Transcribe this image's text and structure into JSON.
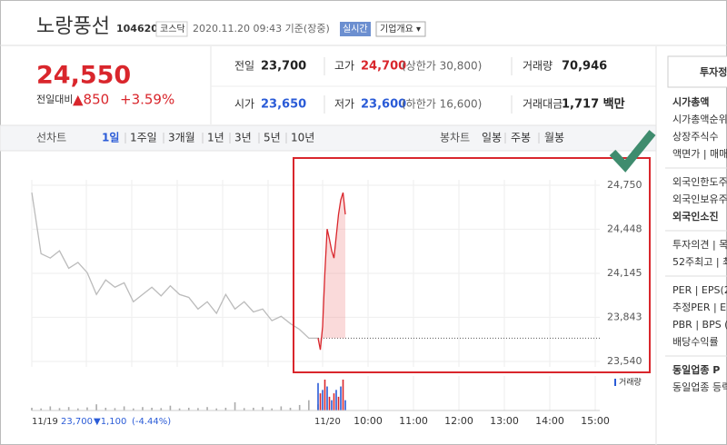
{
  "header": {
    "name": "노랑풍선",
    "code": "104620",
    "market": "코스닥",
    "timestamp": "2020.11.20 09:43 기준(장중)",
    "realtime": "실시간",
    "company_info": "기업개요 ▾"
  },
  "quote": {
    "price": "24,550",
    "change_label": "전일대비",
    "change": "▲850",
    "change_pct": "+3.59%",
    "rows": [
      [
        {
          "label": "전일",
          "value": "23,700"
        },
        {
          "label": "고가",
          "value": "24,700",
          "note": "(상한가 30,800)"
        },
        {
          "label": "거래량",
          "value": "70,946"
        }
      ],
      [
        {
          "label": "시가",
          "value": "23,650"
        },
        {
          "label": "저가",
          "value": "23,600",
          "note": "(하한가 16,600)"
        },
        {
          "label": "거래대금",
          "value": "1,717 백만"
        }
      ]
    ]
  },
  "tabs": {
    "line": "선차트",
    "line_periods": [
      "1일",
      "1주일",
      "3개월",
      "1년",
      "3년",
      "5년",
      "10년"
    ],
    "candle": "봉차트",
    "candle_periods": [
      "일봉",
      "주봉",
      "월봉"
    ]
  },
  "chart": {
    "type": "line",
    "ylim": [
      23540,
      24750
    ],
    "yticks": [
      {
        "value": 23540,
        "label": "23,540"
      },
      {
        "value": 23843,
        "label": "23,843"
      },
      {
        "value": 24145,
        "label": "24,145"
      },
      {
        "value": 24448,
        "label": "24,448"
      },
      {
        "value": 24750,
        "label": "24,750"
      }
    ],
    "prev_close": 23700,
    "previous_day": {
      "label": "11/19",
      "values": [
        24700,
        24280,
        24250,
        24300,
        24180,
        24220,
        24150,
        24000,
        24100,
        24050,
        24080,
        23950,
        24000,
        24050,
        23990,
        24060,
        24000,
        23980,
        23900,
        23950,
        23870,
        24000,
        23900,
        23950,
        23880,
        23900,
        23820,
        23850,
        23800,
        23760,
        23700,
        23700
      ],
      "volume": [
        400,
        300,
        600,
        350,
        500,
        300,
        450,
        900,
        400,
        350,
        600,
        300,
        500,
        400,
        350,
        700,
        300,
        400,
        350,
        500,
        300,
        400,
        1200,
        350,
        400,
        500,
        300,
        600,
        400,
        800,
        1500,
        900
      ]
    },
    "today": {
      "label": "11/20",
      "values": [
        23700,
        23620,
        23780,
        24150,
        24450,
        24380,
        24300,
        24250,
        24400,
        24550,
        24650,
        24700,
        24550
      ],
      "volume": [
        4000,
        2500,
        3000,
        4500,
        3500,
        2000,
        1500,
        2500,
        3000,
        2000,
        3500,
        4500,
        1500
      ]
    },
    "times": [
      "10:00",
      "11:00",
      "12:00",
      "13:00",
      "14:00",
      "15:00"
    ],
    "volume_label": "거래량",
    "footer_close": "23,700",
    "footer_change": "▼1,100",
    "footer_pct": "(-4.44%)"
  },
  "sidebar": {
    "title": "투자정",
    "groups": [
      [
        "시가총액",
        "시가총액순위",
        "상장주식수",
        "액면가 | 매매"
      ],
      [
        "외국인한도주",
        "외국인보유주",
        "외국인소진"
      ],
      [
        "투자의견 | 목",
        "52주최고 | 최"
      ],
      [
        "PER | EPS(2",
        "추정PER | E",
        "PBR | BPS (",
        "배당수익률"
      ],
      [
        "동일업종 P",
        "동일업종 등락"
      ]
    ]
  }
}
